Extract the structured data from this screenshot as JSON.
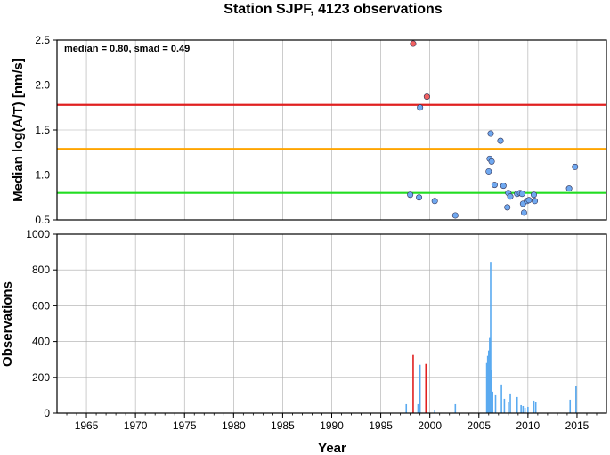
{
  "chart_data": [
    {
      "type": "scatter",
      "title": "Station SJPF, 4123 observations",
      "ylabel": "Median log(A/T) [nm/s]",
      "annotation": "median = 0.80, smad = 0.49",
      "xlim": [
        1962,
        2018
      ],
      "ylim": [
        0.5,
        2.5
      ],
      "yticks": [
        "0.5",
        "1.0",
        "1.5",
        "2.0",
        "2.5"
      ],
      "grid": true,
      "reference_lines": [
        {
          "y": 0.8,
          "color": "#22dd22"
        },
        {
          "y": 1.29,
          "color": "#ffa500"
        },
        {
          "y": 1.78,
          "color": "#e02020"
        }
      ],
      "series": [
        {
          "color": "#6fa8f0",
          "points": [
            {
              "x": 1998.0,
              "y": 0.78
            },
            {
              "x": 1998.9,
              "y": 0.75
            },
            {
              "x": 1999.0,
              "y": 1.75
            },
            {
              "x": 2000.5,
              "y": 0.71
            },
            {
              "x": 2002.6,
              "y": 0.55
            },
            {
              "x": 2006.0,
              "y": 1.04
            },
            {
              "x": 2006.1,
              "y": 1.18
            },
            {
              "x": 2006.2,
              "y": 1.46
            },
            {
              "x": 2006.3,
              "y": 1.15
            },
            {
              "x": 2006.6,
              "y": 0.89
            },
            {
              "x": 2007.2,
              "y": 1.38
            },
            {
              "x": 2007.5,
              "y": 0.88
            },
            {
              "x": 2007.9,
              "y": 0.64
            },
            {
              "x": 2008.0,
              "y": 0.8
            },
            {
              "x": 2008.2,
              "y": 0.76
            },
            {
              "x": 2008.9,
              "y": 0.79
            },
            {
              "x": 2009.2,
              "y": 0.8
            },
            {
              "x": 2009.4,
              "y": 0.79
            },
            {
              "x": 2009.5,
              "y": 0.68
            },
            {
              "x": 2009.6,
              "y": 0.58
            },
            {
              "x": 2009.9,
              "y": 0.71
            },
            {
              "x": 2010.1,
              "y": 0.72
            },
            {
              "x": 2010.6,
              "y": 0.78
            },
            {
              "x": 2010.7,
              "y": 0.71
            },
            {
              "x": 2014.2,
              "y": 0.85
            },
            {
              "x": 2014.8,
              "y": 1.09
            }
          ]
        },
        {
          "color": "#f06060",
          "points": [
            {
              "x": 1998.3,
              "y": 2.46
            },
            {
              "x": 1999.7,
              "y": 1.87
            }
          ]
        }
      ]
    },
    {
      "type": "bar",
      "ylabel": "Observations",
      "xlabel": "Year",
      "xlim": [
        1962,
        2018
      ],
      "ylim": [
        0,
        1000
      ],
      "xticks": [
        "1965",
        "1970",
        "1975",
        "1980",
        "1985",
        "1990",
        "1995",
        "2000",
        "2005",
        "2010",
        "2015"
      ],
      "yticks": [
        "0",
        "200",
        "400",
        "600",
        "800",
        "1000"
      ],
      "grid": true,
      "series": [
        {
          "color": "#5aaaf0",
          "points": [
            {
              "x": 1997.6,
              "y": 50
            },
            {
              "x": 1998.8,
              "y": 50
            },
            {
              "x": 1999.0,
              "y": 270
            },
            {
              "x": 2000.5,
              "y": 20
            },
            {
              "x": 2002.6,
              "y": 50
            },
            {
              "x": 2005.8,
              "y": 280
            },
            {
              "x": 2005.9,
              "y": 320
            },
            {
              "x": 2006.0,
              "y": 350
            },
            {
              "x": 2006.1,
              "y": 420
            },
            {
              "x": 2006.2,
              "y": 845
            },
            {
              "x": 2006.3,
              "y": 240
            },
            {
              "x": 2006.4,
              "y": 120
            },
            {
              "x": 2006.7,
              "y": 100
            },
            {
              "x": 2007.3,
              "y": 160
            },
            {
              "x": 2007.6,
              "y": 80
            },
            {
              "x": 2008.0,
              "y": 60
            },
            {
              "x": 2008.2,
              "y": 110
            },
            {
              "x": 2008.9,
              "y": 90
            },
            {
              "x": 2009.3,
              "y": 45
            },
            {
              "x": 2009.5,
              "y": 40
            },
            {
              "x": 2009.7,
              "y": 30
            },
            {
              "x": 2010.0,
              "y": 35
            },
            {
              "x": 2010.6,
              "y": 70
            },
            {
              "x": 2010.8,
              "y": 60
            },
            {
              "x": 2014.3,
              "y": 75
            },
            {
              "x": 2014.9,
              "y": 150
            }
          ]
        },
        {
          "color": "#e02020",
          "points": [
            {
              "x": 1998.3,
              "y": 325
            },
            {
              "x": 1999.6,
              "y": 275
            }
          ]
        }
      ]
    }
  ]
}
